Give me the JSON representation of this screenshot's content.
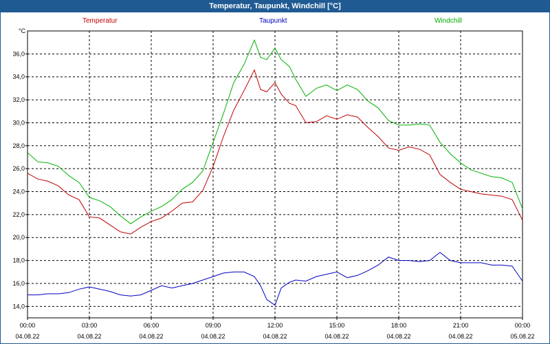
{
  "window": {
    "title": "Temperatur, Taupunkt, Windchill [°C]"
  },
  "colors": {
    "titlebar": "#1f5a93",
    "temperatur": "#c00000",
    "taupunkt": "#0000c0",
    "windchill": "#00b000"
  },
  "chart_data": {
    "type": "line",
    "title": "Temperatur, Taupunkt, Windchill [°C]",
    "ylabel": "°C",
    "ylim": [
      13,
      38
    ],
    "yticks": [
      "14,0",
      "16,0",
      "18,0",
      "20,0",
      "22,0",
      "24,0",
      "26,0",
      "28,0",
      "30,0",
      "32,0",
      "34,0",
      "36,0"
    ],
    "xticks": [
      {
        "time": "00:00",
        "date": "04.08.22"
      },
      {
        "time": "03:00",
        "date": "04.08.22"
      },
      {
        "time": "06:00",
        "date": "04.08.22"
      },
      {
        "time": "09:00",
        "date": "04.08.22"
      },
      {
        "time": "12:00",
        "date": "04.08.22"
      },
      {
        "time": "15:00",
        "date": "04.08.22"
      },
      {
        "time": "18:00",
        "date": "04.08.22"
      },
      {
        "time": "21:00",
        "date": "04.08.22"
      },
      {
        "time": "00:00",
        "date": "05.08.22"
      }
    ],
    "xlim_hours": [
      0,
      24
    ],
    "grid": true,
    "legend_position": "top",
    "series": [
      {
        "name": "Temperatur",
        "color": "#c00000",
        "x": [
          0,
          0.5,
          1,
          1.5,
          2,
          2.5,
          3,
          3.5,
          4,
          4.5,
          5,
          5.5,
          6,
          6.5,
          7,
          7.5,
          8,
          8.5,
          9,
          9.5,
          10,
          10.5,
          11,
          11.3,
          11.6,
          12,
          12.3,
          12.7,
          13,
          13.5,
          14,
          14.5,
          15,
          15.5,
          16,
          16.5,
          17,
          17.5,
          18,
          18.5,
          19,
          19.5,
          20,
          20.5,
          21,
          21.5,
          22,
          22.5,
          23,
          23.5,
          24
        ],
        "values": [
          25.6,
          25.1,
          24.9,
          24.5,
          23.7,
          23.3,
          21.8,
          21.7,
          21.1,
          20.5,
          20.3,
          20.9,
          21.4,
          21.7,
          22.3,
          23.0,
          23.1,
          24.1,
          26.2,
          28.8,
          31.1,
          32.8,
          34.6,
          32.9,
          32.7,
          33.5,
          32.5,
          31.7,
          31.5,
          30.0,
          30.1,
          30.6,
          30.3,
          30.7,
          30.5,
          29.6,
          28.8,
          27.8,
          27.6,
          27.9,
          27.7,
          27.2,
          25.5,
          24.8,
          24.2,
          24.0,
          23.8,
          23.7,
          23.6,
          23.3,
          21.5
        ]
      },
      {
        "name": "Taupunkt",
        "color": "#0000c0",
        "x": [
          0,
          0.5,
          1,
          1.5,
          2,
          2.5,
          3,
          3.5,
          4,
          4.5,
          5,
          5.5,
          6,
          6.5,
          7,
          7.5,
          8,
          8.5,
          9,
          9.5,
          10,
          10.5,
          11,
          11.3,
          11.6,
          12,
          12.3,
          12.7,
          13,
          13.5,
          14,
          14.5,
          15,
          15.5,
          16,
          16.5,
          17,
          17.5,
          18,
          18.5,
          19,
          19.5,
          20,
          20.5,
          21,
          21.5,
          22,
          22.5,
          23,
          23.5,
          24
        ],
        "values": [
          15.0,
          15.0,
          15.1,
          15.1,
          15.2,
          15.5,
          15.7,
          15.5,
          15.3,
          15.0,
          14.9,
          15.0,
          15.4,
          15.8,
          15.6,
          15.8,
          16.0,
          16.3,
          16.6,
          16.9,
          17.0,
          17.0,
          16.6,
          15.8,
          14.6,
          14.1,
          15.6,
          16.1,
          16.3,
          16.2,
          16.6,
          16.8,
          17.0,
          16.5,
          16.7,
          17.1,
          17.6,
          18.3,
          18.0,
          18.0,
          17.9,
          18.0,
          18.7,
          18.0,
          17.8,
          17.8,
          17.8,
          17.6,
          17.6,
          17.5,
          16.2
        ]
      },
      {
        "name": "Windchill",
        "color": "#00b000",
        "x": [
          0,
          0.5,
          1,
          1.5,
          2,
          2.5,
          3,
          3.5,
          4,
          4.5,
          5,
          5.5,
          6,
          6.5,
          7,
          7.5,
          8,
          8.5,
          9,
          9.5,
          10,
          10.5,
          11,
          11.3,
          11.6,
          12,
          12.3,
          12.7,
          13,
          13.5,
          14,
          14.5,
          15,
          15.5,
          16,
          16.5,
          17,
          17.5,
          18,
          18.5,
          19,
          19.5,
          20,
          20.5,
          21,
          21.5,
          22,
          22.5,
          23,
          23.5,
          24
        ],
        "values": [
          27.4,
          26.6,
          26.5,
          26.2,
          25.4,
          24.8,
          23.5,
          23.2,
          22.7,
          21.9,
          21.2,
          21.8,
          22.3,
          22.7,
          23.3,
          24.2,
          24.8,
          25.8,
          28.3,
          30.8,
          33.5,
          35.1,
          37.2,
          35.7,
          35.5,
          36.5,
          35.5,
          34.9,
          33.8,
          32.3,
          33.0,
          33.3,
          32.8,
          33.3,
          32.9,
          31.9,
          31.3,
          30.2,
          29.8,
          29.8,
          29.9,
          29.8,
          28.3,
          27.3,
          26.5,
          25.9,
          25.6,
          25.3,
          25.2,
          24.8,
          22.5
        ]
      }
    ]
  }
}
